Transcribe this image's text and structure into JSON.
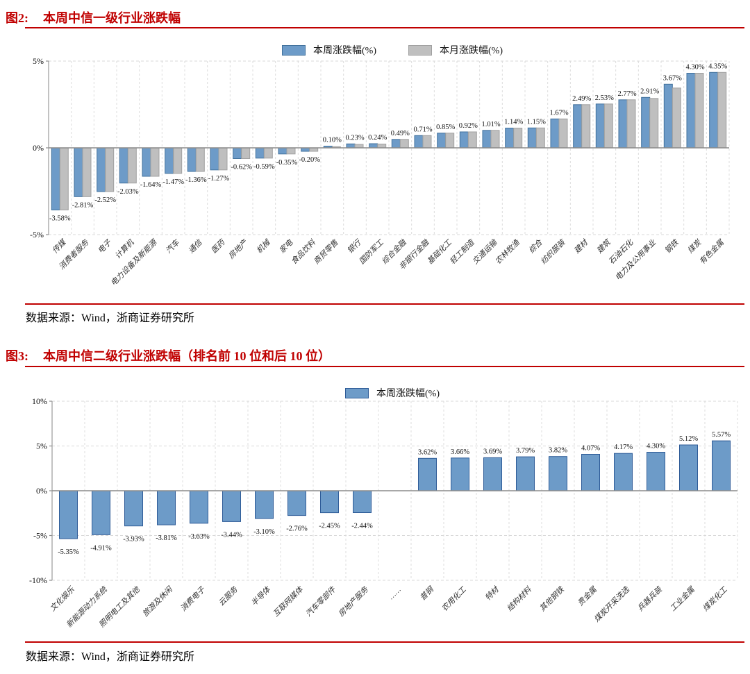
{
  "figures": [
    {
      "tag": "图2:",
      "title": "本周中信一级行业涨跌幅",
      "source": "数据来源：Wind，浙商证券研究所"
    },
    {
      "tag": "图3:",
      "title": "本周中信二级行业涨跌幅（排名前 10 位和后 10 位）",
      "source": "数据来源：Wind，浙商证券研究所"
    }
  ],
  "colors": {
    "accent_red": "#C00000",
    "bar_blue_fill": "#6D9BC8",
    "bar_blue_border": "#41719C",
    "bar_gray_fill": "#BFBFBF",
    "bar_gray_border": "#A0A0A0"
  },
  "chart_data": [
    {
      "type": "bar",
      "title": "本周中信一级行业涨跌幅",
      "legend_position": "top",
      "grid": "dashed",
      "xlabel": "",
      "ylabel": "",
      "ylim": [
        -5,
        5
      ],
      "yticks": [
        {
          "value": 5,
          "label": "5%"
        },
        {
          "value": 0,
          "label": "0%"
        },
        {
          "value": -5,
          "label": "-5%"
        }
      ],
      "categories": [
        "传媒",
        "消费者服务",
        "电子",
        "计算机",
        "电力设备及新能源",
        "汽车",
        "通信",
        "医药",
        "房地产",
        "机械",
        "家电",
        "食品饮料",
        "商贸零售",
        "银行",
        "国防军工",
        "综合金融",
        "非银行金融",
        "基础化工",
        "轻工制造",
        "交通运输",
        "农林牧渔",
        "综合",
        "纺织服装",
        "建材",
        "建筑",
        "石油石化",
        "电力及公用事业",
        "钢铁",
        "煤炭",
        "有色金属"
      ],
      "series": [
        {
          "name": "本周涨跌幅(%)",
          "color": "#6D9BC8",
          "border": "#41719C",
          "values": [
            -3.58,
            -2.81,
            -2.52,
            -2.03,
            -1.64,
            -1.47,
            -1.36,
            -1.27,
            -0.62,
            -0.59,
            -0.35,
            -0.2,
            0.1,
            0.23,
            0.24,
            0.49,
            0.71,
            0.85,
            0.92,
            1.01,
            1.14,
            1.15,
            1.67,
            2.49,
            2.53,
            2.77,
            2.91,
            3.67,
            4.3,
            4.35
          ],
          "labels": [
            "-3.58%",
            "-2.81%",
            "-2.52%",
            "-2.03%",
            "-1.64%",
            "-1.47%",
            "-1.36%",
            "-1.27%",
            "-0.62%",
            "-0.59%",
            "-0.35%",
            "-0.20%",
            "0.10%",
            "0.23%",
            "0.24%",
            "0.49%",
            "0.71%",
            "0.85%",
            "0.92%",
            "1.01%",
            "1.14%",
            "1.15%",
            "1.67%",
            "2.49%",
            "2.53%",
            "2.77%",
            "2.91%",
            "3.67%",
            "4.30%",
            "4.35%"
          ]
        },
        {
          "name": "本月涨跌幅(%)",
          "color": "#BFBFBF",
          "border": "#A0A0A0",
          "values_estimated": true,
          "values": [
            -3.58,
            -2.81,
            -2.52,
            -2.03,
            -1.64,
            -1.47,
            -1.36,
            -1.27,
            -0.62,
            -0.59,
            -0.35,
            -0.2,
            0.07,
            0.2,
            0.22,
            0.49,
            0.71,
            0.85,
            0.92,
            1.01,
            1.14,
            1.15,
            1.67,
            2.49,
            2.53,
            2.77,
            2.85,
            3.45,
            4.3,
            4.35
          ],
          "labels": null
        }
      ]
    },
    {
      "type": "bar",
      "title": "本周中信二级行业涨跌幅（排名前 10 位和后 10 位）",
      "legend_position": "top",
      "grid": "dashed",
      "xlabel": "",
      "ylabel": "",
      "ylim": [
        -10,
        10
      ],
      "yticks": [
        {
          "value": 10,
          "label": "10%"
        },
        {
          "value": 5,
          "label": "5%"
        },
        {
          "value": 0,
          "label": "0%"
        },
        {
          "value": -5,
          "label": "-5%"
        },
        {
          "value": -10,
          "label": "-10%"
        }
      ],
      "categories": [
        "文化娱乐",
        "新能源动力系统",
        "照明电工及其他",
        "旅游及休闲",
        "消费电子",
        "云服务",
        "半导体",
        "互联网媒体",
        "汽车零部件",
        "房地产服务",
        "……",
        "普钢",
        "农用化工",
        "特材",
        "结构材料",
        "其他钢铁",
        "贵金属",
        "煤炭开采洗选",
        "兵器兵装",
        "工业金属",
        "煤炭化工"
      ],
      "series": [
        {
          "name": "本周涨跌幅(%)",
          "color": "#6D9BC8",
          "border": "#2E5B97",
          "values": [
            -5.35,
            -4.91,
            -3.93,
            -3.81,
            -3.63,
            -3.44,
            -3.1,
            -2.76,
            -2.45,
            -2.44,
            null,
            3.62,
            3.66,
            3.69,
            3.79,
            3.82,
            4.07,
            4.17,
            4.3,
            5.12,
            5.57
          ],
          "labels": [
            "-5.35%",
            "-4.91%",
            "-3.93%",
            "-3.81%",
            "-3.63%",
            "-3.44%",
            "-3.10%",
            "-2.76%",
            "-2.45%",
            "-2.44%",
            "",
            "3.62%",
            "3.66%",
            "3.69%",
            "3.79%",
            "3.82%",
            "4.07%",
            "4.17%",
            "4.30%",
            "5.12%",
            "5.57%"
          ]
        }
      ]
    }
  ]
}
